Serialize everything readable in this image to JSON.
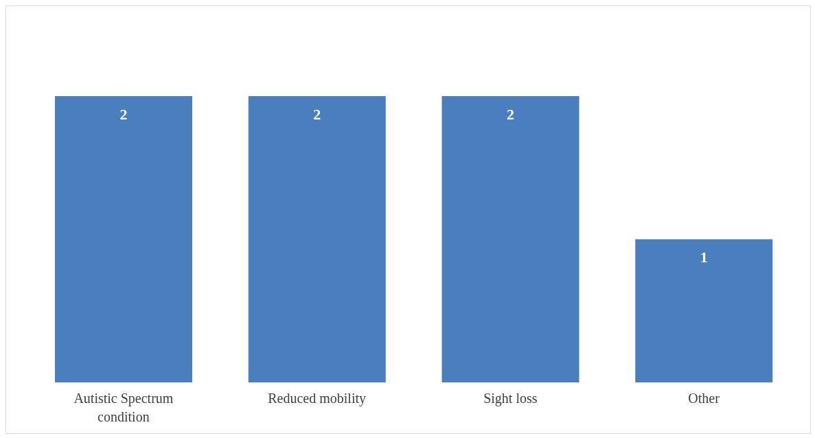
{
  "chart_data": {
    "type": "bar",
    "categories": [
      "Autistic Spectrum condition",
      "Reduced mobility",
      "Sight loss",
      "Other"
    ],
    "values": [
      2,
      2,
      2,
      1
    ],
    "color": "#4a7fbd",
    "data_labels": true,
    "grid": false,
    "legend": false
  }
}
